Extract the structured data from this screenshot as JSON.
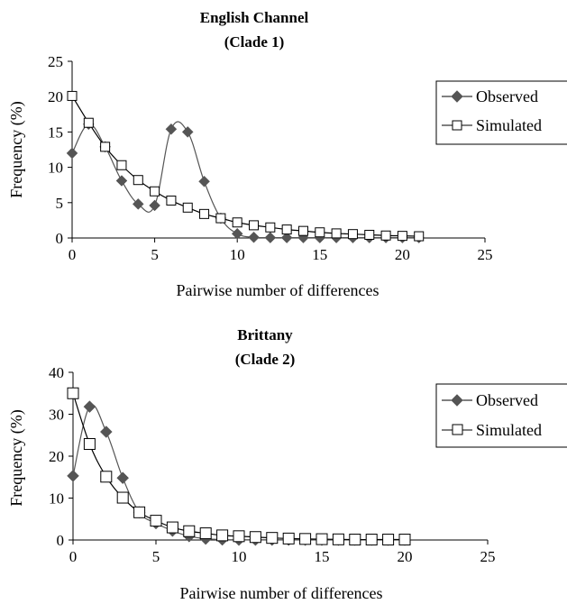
{
  "chart_data": [
    {
      "type": "line",
      "title": "English Channel",
      "subtitle": "(Clade 1)",
      "xlabel": "Pairwise number of differences",
      "ylabel": "Frequency (%)",
      "xlim": [
        0,
        25
      ],
      "ylim": [
        0,
        25
      ],
      "xticks": [
        "0",
        "5",
        "10",
        "15",
        "20",
        "25"
      ],
      "yticks": [
        "0",
        "5",
        "10",
        "15",
        "20",
        "25"
      ],
      "grid": false,
      "legend_position": "right",
      "series": [
        {
          "name": "Observed",
          "marker": "filled-diamond",
          "x": [
            0,
            1,
            2,
            3,
            4,
            5,
            6,
            7,
            8,
            9,
            10,
            11,
            12,
            13,
            14,
            15,
            16,
            17,
            18,
            19,
            20,
            21
          ],
          "values": [
            12.0,
            16.1,
            12.9,
            8.1,
            4.8,
            4.6,
            15.4,
            15.0,
            8.0,
            2.8,
            0.6,
            0.1,
            0.05,
            0.05,
            0.05,
            0.05,
            0.05,
            0.05,
            0.05,
            0.05,
            0.05,
            0.05
          ]
        },
        {
          "name": "Simulated",
          "marker": "open-square",
          "x": [
            0,
            1,
            2,
            3,
            4,
            5,
            6,
            7,
            8,
            9,
            10,
            11,
            12,
            13,
            14,
            15,
            16,
            17,
            18,
            19,
            20,
            21
          ],
          "values": [
            20.1,
            16.3,
            12.9,
            10.3,
            8.2,
            6.6,
            5.3,
            4.3,
            3.4,
            2.8,
            2.2,
            1.8,
            1.5,
            1.2,
            1.0,
            0.8,
            0.65,
            0.55,
            0.45,
            0.35,
            0.3,
            0.25
          ]
        }
      ]
    },
    {
      "type": "line",
      "title": "Brittany",
      "subtitle": "(Clade 2)",
      "xlabel": "Pairwise number of differences",
      "ylabel": "Frequency (%)",
      "xlim": [
        0,
        25
      ],
      "ylim": [
        0,
        40
      ],
      "xticks": [
        "0",
        "5",
        "10",
        "15",
        "20",
        "25"
      ],
      "yticks": [
        "0",
        "10",
        "20",
        "30",
        "40"
      ],
      "grid": false,
      "legend_position": "right",
      "series": [
        {
          "name": "Observed",
          "marker": "filled-diamond",
          "x": [
            0,
            1,
            2,
            3,
            4,
            5,
            6,
            7,
            8,
            9,
            10,
            11,
            12,
            13,
            14,
            15,
            16,
            17,
            18,
            19,
            20
          ],
          "values": [
            15.3,
            31.8,
            25.8,
            14.8,
            6.6,
            4.0,
            2.2,
            0.9,
            0.3,
            0.1,
            0.05,
            0.05,
            0.05,
            0.05,
            0.05,
            0.05,
            0.05,
            0.05,
            0.05,
            0.05,
            0.05
          ]
        },
        {
          "name": "Simulated",
          "marker": "open-square",
          "x": [
            0,
            1,
            2,
            3,
            4,
            5,
            6,
            7,
            8,
            9,
            10,
            11,
            12,
            13,
            14,
            15,
            16,
            17,
            18,
            19,
            20
          ],
          "values": [
            35.0,
            22.9,
            15.1,
            10.1,
            6.6,
            4.6,
            3.0,
            2.1,
            1.6,
            1.1,
            0.9,
            0.7,
            0.5,
            0.35,
            0.25,
            0.2,
            0.15,
            0.1,
            0.1,
            0.1,
            0.1
          ]
        }
      ]
    }
  ]
}
